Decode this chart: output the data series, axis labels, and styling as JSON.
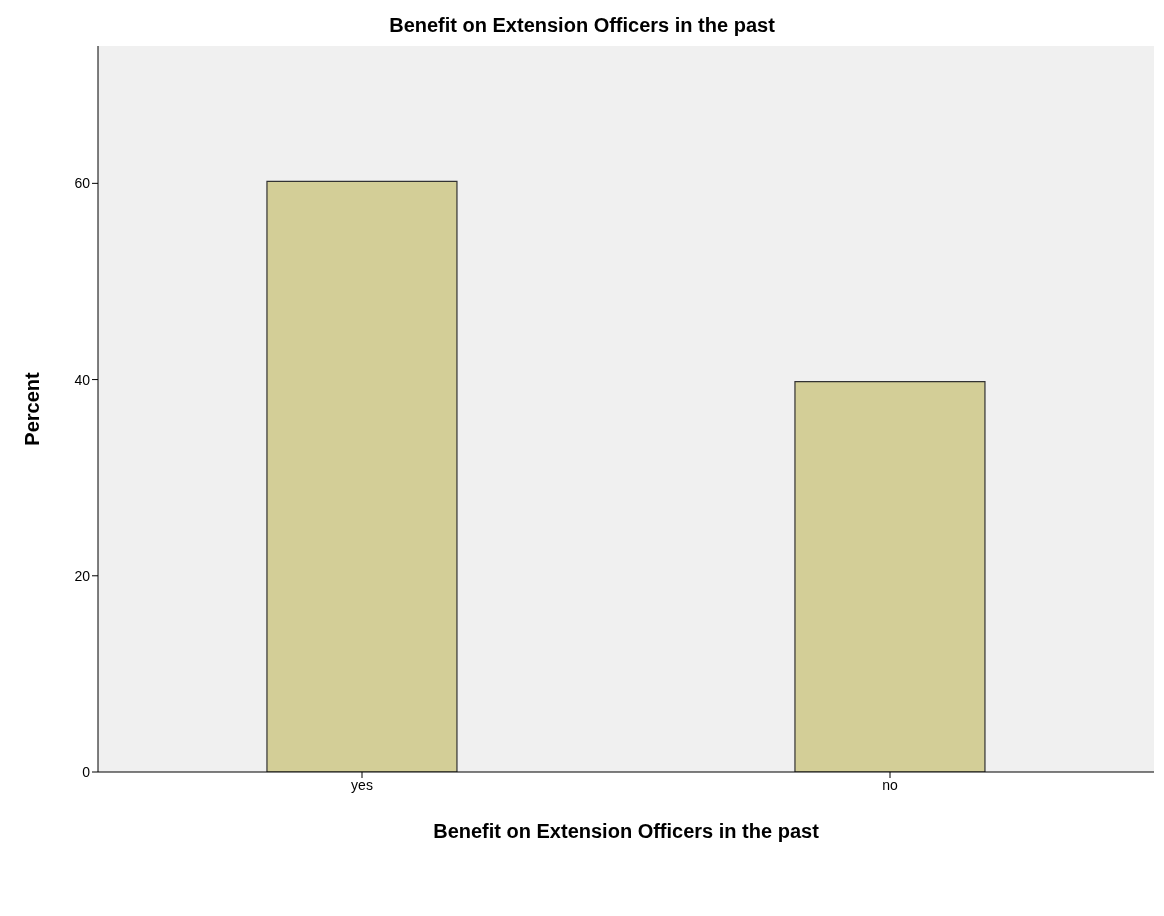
{
  "chart_data": {
    "type": "bar",
    "title": "Benefit on Extension Officers in the past",
    "xlabel": "Benefit on Extension Officers in the past",
    "ylabel": "Percent",
    "categories": [
      "yes",
      "no"
    ],
    "values": [
      60.2,
      39.8
    ],
    "color": "#d3ce97",
    "ylim": [
      0,
      74
    ],
    "yticks": [
      0,
      20,
      40,
      60
    ],
    "grid": false
  }
}
